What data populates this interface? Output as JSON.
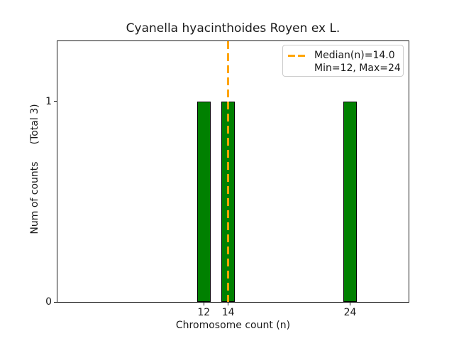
{
  "chart_data": {
    "type": "bar",
    "title": "Cyanella hyacinthoides Royen ex L.",
    "xlabel": "Chromosome count (n)",
    "ylabel": "Num of counts",
    "ylabel_secondary": "(Total 3)",
    "x": [
      12,
      14,
      24
    ],
    "values": [
      1,
      1,
      1
    ],
    "total": 3,
    "bar_width": 1.1,
    "bar_color": "#008000",
    "bar_edge_color": "#000000",
    "xlim": [
      0,
      28.8
    ],
    "ylim": [
      0,
      1.3
    ],
    "x_ticks": [
      12,
      14,
      24
    ],
    "y_ticks": [
      0,
      1
    ],
    "median": 14.0,
    "min": 12,
    "max": 24,
    "median_line_color": "#FFA500",
    "grid": false,
    "legend": {
      "position": "upper right",
      "entries": [
        {
          "handle": "dashed-line",
          "label": "Median(n)=14.0"
        },
        {
          "handle": "none",
          "label": "Min=12, Max=24"
        }
      ]
    }
  }
}
